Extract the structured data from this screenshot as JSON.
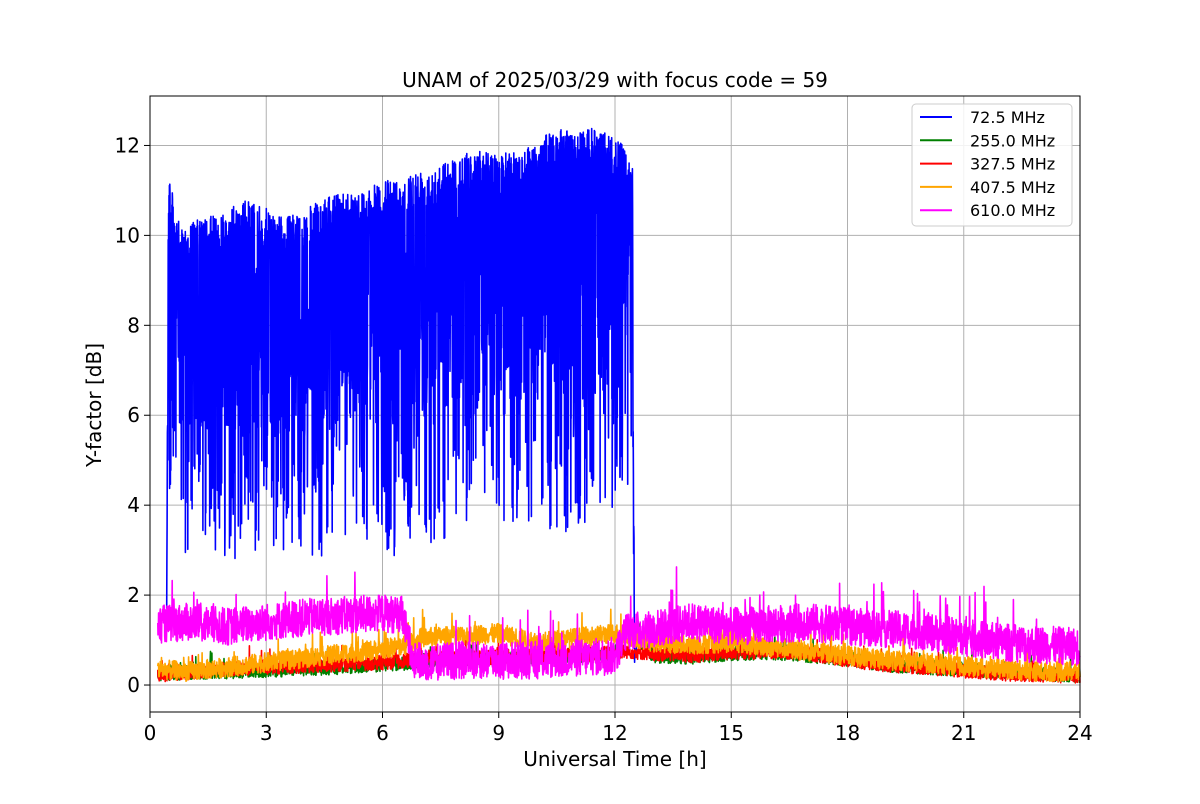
{
  "chart_data": {
    "type": "line",
    "title": "UNAM of 2025/03/29 with focus code = 59",
    "xlabel": "Universal Time [h]",
    "ylabel": "Y-factor [dB]",
    "xlim": [
      0,
      24
    ],
    "ylim": [
      -0.6,
      13.1
    ],
    "xticks": [
      0,
      3,
      6,
      9,
      12,
      15,
      18,
      21,
      24
    ],
    "yticks": [
      0,
      2,
      4,
      6,
      8,
      10,
      12
    ],
    "grid": true,
    "legend_position": "top-right",
    "series": [
      {
        "name": " 72.5 MHz",
        "color": "#0000ff",
        "x": [
          0.43,
          0.47,
          0.5,
          0.6,
          0.8,
          1.0,
          1.5,
          2.0,
          2.5,
          3.0,
          3.5,
          4.0,
          4.5,
          5.0,
          5.5,
          6.0,
          6.5,
          7.0,
          7.5,
          8.0,
          8.5,
          9.0,
          9.5,
          10.0,
          10.5,
          11.0,
          11.5,
          12.0,
          12.3,
          12.45,
          12.5,
          12.55
        ],
        "upper": [
          1.8,
          10.6,
          11.5,
          10.8,
          10.1,
          10.3,
          10.4,
          10.6,
          10.8,
          10.6,
          10.4,
          10.6,
          10.8,
          11.0,
          11.0,
          11.2,
          11.3,
          11.5,
          11.6,
          11.8,
          11.9,
          11.8,
          11.9,
          12.1,
          12.4,
          12.3,
          12.4,
          12.2,
          11.9,
          11.5,
          1.4,
          1.2
        ],
        "lower": [
          1.6,
          5.5,
          3.6,
          2.8,
          2.7,
          2.9,
          3.0,
          2.8,
          2.7,
          2.8,
          3.0,
          2.9,
          2.8,
          3.1,
          3.2,
          2.8,
          2.9,
          3.1,
          3.2,
          3.4,
          3.3,
          3.4,
          3.3,
          3.6,
          3.2,
          3.3,
          3.5,
          4.0,
          4.5,
          3.7,
          1.4,
          1.2
        ]
      },
      {
        "name": "255.0 MHz",
        "color": "#008000",
        "x": [
          0.2,
          1,
          2,
          3,
          4,
          5,
          6,
          6.7,
          7,
          8,
          9,
          10,
          11,
          12,
          12.3,
          13,
          14,
          15,
          16,
          17,
          18,
          19,
          20,
          21,
          22,
          23,
          24
        ],
        "values": [
          0.25,
          0.28,
          0.3,
          0.33,
          0.36,
          0.4,
          0.45,
          0.5,
          0.55,
          0.58,
          0.6,
          0.62,
          0.66,
          0.7,
          1.3,
          0.65,
          0.62,
          0.7,
          0.72,
          0.66,
          0.58,
          0.45,
          0.4,
          0.35,
          0.3,
          0.25,
          0.22
        ]
      },
      {
        "name": "327.5 MHz",
        "color": "#ff0000",
        "x": [
          0.2,
          1,
          2,
          3,
          4,
          5,
          6,
          6.7,
          7,
          8,
          9,
          10,
          11,
          12,
          12.3,
          13,
          14,
          15,
          16,
          17,
          18,
          19,
          20,
          21,
          22,
          23,
          24
        ],
        "values": [
          0.22,
          0.28,
          0.35,
          0.4,
          0.42,
          0.46,
          0.5,
          0.55,
          0.58,
          0.6,
          0.62,
          0.65,
          0.68,
          0.72,
          0.75,
          0.7,
          0.66,
          0.72,
          0.75,
          0.7,
          0.55,
          0.45,
          0.38,
          0.32,
          0.25,
          0.22,
          0.2
        ]
      },
      {
        "name": "407.5 MHz",
        "color": "#ffa500",
        "x": [
          0.2,
          1,
          2,
          3,
          4,
          5,
          6,
          6.7,
          7,
          8,
          9,
          10,
          11,
          12,
          12.3,
          13,
          14,
          15,
          16,
          17,
          18,
          19,
          20,
          21,
          22,
          23,
          24
        ],
        "values": [
          0.35,
          0.3,
          0.4,
          0.5,
          0.6,
          0.7,
          0.8,
          0.9,
          1.05,
          1.1,
          1.15,
          0.95,
          1.05,
          1.15,
          1.1,
          0.95,
          0.9,
          0.95,
          0.85,
          0.75,
          0.65,
          0.55,
          0.5,
          0.42,
          0.35,
          0.3,
          0.3
        ]
      },
      {
        "name": "610.0 MHz",
        "color": "#ff00ff",
        "x": [
          0.2,
          1,
          2,
          3,
          4,
          5,
          6,
          6.5,
          6.8,
          7,
          8,
          9,
          10,
          11,
          12,
          12.3,
          13,
          14,
          15,
          16,
          17,
          18,
          19,
          20,
          21,
          22,
          23,
          24
        ],
        "values": [
          1.35,
          1.4,
          1.3,
          1.4,
          1.5,
          1.55,
          1.6,
          1.55,
          0.6,
          0.5,
          0.55,
          0.55,
          0.55,
          0.6,
          0.65,
          1.2,
          1.25,
          1.4,
          1.3,
          1.35,
          1.4,
          1.3,
          1.25,
          1.2,
          1.05,
          0.95,
          0.9,
          0.85
        ]
      }
    ]
  }
}
